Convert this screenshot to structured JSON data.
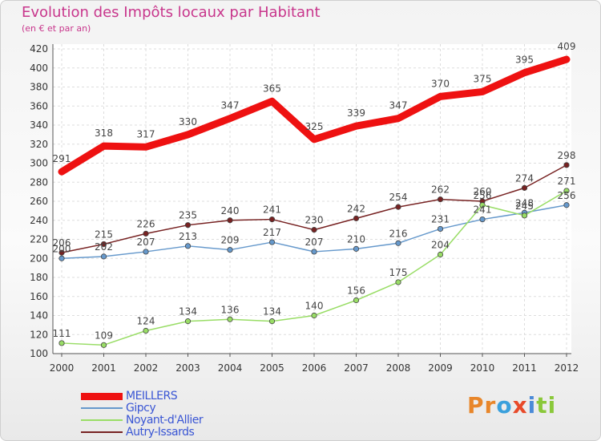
{
  "chart_data": {
    "type": "line",
    "title": "Evolution des Impôts locaux par Habitant",
    "subtitle": "(en € et par an)",
    "x": [
      "2000",
      "2001",
      "2002",
      "2003",
      "2004",
      "2005",
      "2006",
      "2007",
      "2008",
      "2009",
      "2010",
      "2011",
      "2012"
    ],
    "ylim": [
      100,
      420
    ],
    "yticks": [
      100,
      120,
      140,
      160,
      180,
      200,
      220,
      240,
      260,
      280,
      300,
      320,
      340,
      360,
      380,
      400,
      420
    ],
    "grid": true,
    "legend": "bottom-left",
    "series": [
      {
        "name": "MEILLERS",
        "color": "#ee1111",
        "values": [
          291,
          318,
          317,
          330,
          347,
          365,
          325,
          339,
          347,
          370,
          375,
          395,
          409
        ]
      },
      {
        "name": "Gipcy",
        "color": "#6699cc",
        "values": [
          200,
          202,
          207,
          213,
          209,
          217,
          207,
          210,
          216,
          231,
          241,
          248,
          256
        ]
      },
      {
        "name": "Noyant-d'Allier",
        "color": "#99dd66",
        "values": [
          111,
          109,
          124,
          134,
          136,
          134,
          140,
          156,
          175,
          204,
          256,
          245,
          271
        ]
      },
      {
        "name": "Autry-Issards",
        "color": "#772222",
        "values": [
          206,
          215,
          226,
          235,
          240,
          241,
          230,
          242,
          254,
          262,
          260,
          274,
          298
        ]
      }
    ]
  },
  "logo": {
    "letters": [
      "P",
      "r",
      "o",
      "x",
      "i",
      "t",
      "i"
    ],
    "colors": [
      "#e8862a",
      "#e8862a",
      "#3aa0dc",
      "#e84a2a",
      "#4a8ad8",
      "#8ac83a",
      "#8ac83a"
    ]
  }
}
